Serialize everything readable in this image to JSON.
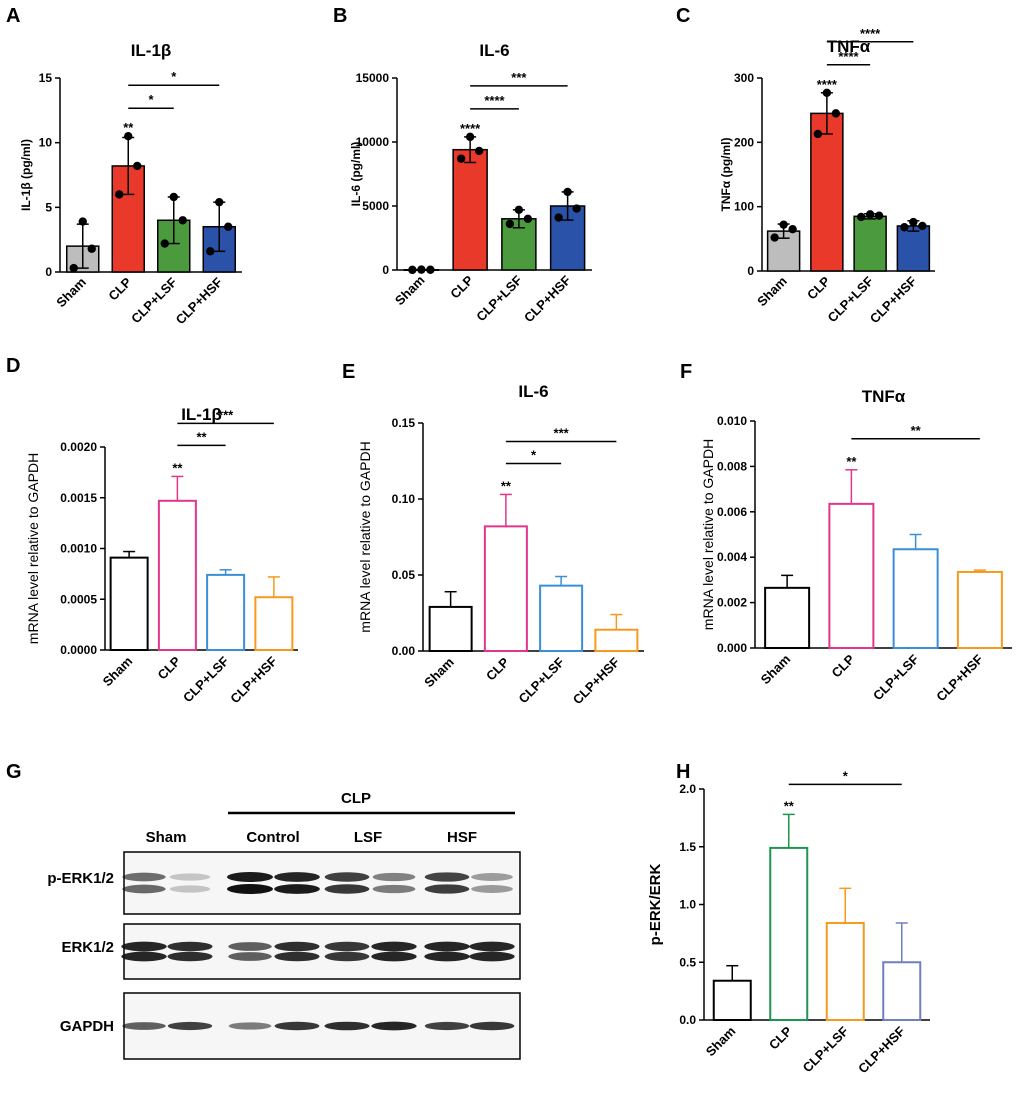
{
  "figure": {
    "panel_labels": [
      "A",
      "B",
      "C",
      "D",
      "E",
      "F",
      "G",
      "H"
    ]
  },
  "chart_data": [
    {
      "panel": "A",
      "type": "bar",
      "title": "IL-1β",
      "ylabel": "IL-1β (pg/ml)",
      "categories": [
        "Sham",
        "CLP",
        "CLP+LSF",
        "CLP+HSF"
      ],
      "values": [
        2.0,
        8.2,
        4.0,
        3.5
      ],
      "errors": [
        1.7,
        2.2,
        1.8,
        1.9
      ],
      "points": [
        [
          3.9,
          1.8,
          0.3
        ],
        [
          10.5,
          8.2,
          6.0
        ],
        [
          5.8,
          4.0,
          2.2
        ],
        [
          5.4,
          3.5,
          1.6
        ]
      ],
      "colors": [
        "#bdbdbd",
        "#e8392a",
        "#4b9b3e",
        "#2a52a8"
      ],
      "filled": true,
      "ylim": [
        0,
        15
      ],
      "yticks": [
        "0",
        "5",
        "10",
        "15"
      ],
      "significance": [
        {
          "label": "**",
          "on": 1
        },
        {
          "label": "*",
          "from": 1,
          "to": 2
        },
        {
          "label": "*",
          "from": 1,
          "to": 3
        }
      ]
    },
    {
      "panel": "B",
      "type": "bar",
      "title": "IL-6",
      "ylabel": "IL-6 (pg/ml)",
      "categories": [
        "Sham",
        "CLP",
        "CLP+LSF",
        "CLP+HSF"
      ],
      "values": [
        20,
        9400,
        4000,
        5000
      ],
      "errors": [
        10,
        1000,
        700,
        1100
      ],
      "points": [
        [
          30,
          20,
          10
        ],
        [
          10400,
          9300,
          8700
        ],
        [
          4700,
          4000,
          3600
        ],
        [
          6100,
          4800,
          4100
        ]
      ],
      "colors": [
        "#bdbdbd",
        "#e8392a",
        "#4b9b3e",
        "#2a52a8"
      ],
      "filled": true,
      "ylim": [
        0,
        15000
      ],
      "yticks": [
        "0",
        "5000",
        "10000",
        "15000"
      ],
      "significance": [
        {
          "label": "****",
          "on": 1
        },
        {
          "label": "****",
          "from": 1,
          "to": 2
        },
        {
          "label": "***",
          "from": 1,
          "to": 3
        }
      ]
    },
    {
      "panel": "C",
      "type": "bar",
      "title": "TNFα",
      "ylabel": "TNFα (pg/ml)",
      "categories": [
        "Sham",
        "CLP",
        "CLP+LSF",
        "CLP+HSF"
      ],
      "values": [
        62,
        245,
        85,
        70
      ],
      "errors": [
        11,
        32,
        4,
        8
      ],
      "points": [
        [
          72,
          65,
          52
        ],
        [
          277,
          245,
          213
        ],
        [
          88,
          86,
          84
        ],
        [
          76,
          70,
          68
        ]
      ],
      "colors": [
        "#bdbdbd",
        "#e8392a",
        "#4b9b3e",
        "#2a52a8"
      ],
      "filled": true,
      "ylim": [
        0,
        300
      ],
      "yticks": [
        "0",
        "100",
        "200",
        "300"
      ],
      "significance": [
        {
          "label": "****",
          "on": 1
        },
        {
          "label": "****",
          "from": 1,
          "to": 2
        },
        {
          "label": "****",
          "from": 1,
          "to": 3
        }
      ]
    },
    {
      "panel": "D",
      "type": "bar",
      "title": "IL-1β",
      "ylabel": "mRNA level relative to GAPDH",
      "categories": [
        "Sham",
        "CLP",
        "CLP+LSF",
        "CLP+HSF"
      ],
      "values": [
        0.00091,
        0.00147,
        0.00074,
        0.00052
      ],
      "errors": [
        6e-05,
        0.00024,
        5e-05,
        0.0002
      ],
      "colors": [
        "#000000",
        "#e0368c",
        "#3a8fd8",
        "#f59a1f"
      ],
      "filled": false,
      "ylim": [
        0,
        0.002
      ],
      "yticks": [
        "0.0000",
        "0.0005",
        "0.0010",
        "0.0015",
        "0.0020"
      ],
      "significance": [
        {
          "label": "**",
          "on": 1
        },
        {
          "label": "**",
          "from": 1,
          "to": 2
        },
        {
          "label": "***",
          "from": 1,
          "to": 3
        }
      ]
    },
    {
      "panel": "E",
      "type": "bar",
      "title": "IL-6",
      "ylabel": "mRNA level relative to GAPDH",
      "categories": [
        "Sham",
        "CLP",
        "CLP+LSF",
        "CLP+HSF"
      ],
      "values": [
        0.029,
        0.082,
        0.043,
        0.014
      ],
      "errors": [
        0.01,
        0.021,
        0.006,
        0.01
      ],
      "colors": [
        "#000000",
        "#e0368c",
        "#3a8fd8",
        "#f59a1f"
      ],
      "filled": false,
      "ylim": [
        0,
        0.15
      ],
      "yticks": [
        "0.00",
        "0.05",
        "0.10",
        "0.15"
      ],
      "significance": [
        {
          "label": "**",
          "on": 1
        },
        {
          "label": "*",
          "from": 1,
          "to": 2
        },
        {
          "label": "***",
          "from": 1,
          "to": 3
        }
      ]
    },
    {
      "panel": "F",
      "type": "bar",
      "title": "TNFα",
      "ylabel": "mRNA level relative to GAPDH",
      "categories": [
        "Sham",
        "CLP",
        "CLP+LSF",
        "CLP+HSF"
      ],
      "values": [
        0.00265,
        0.00635,
        0.00435,
        0.00335
      ],
      "errors": [
        0.00055,
        0.0015,
        0.00065,
        8e-05
      ],
      "colors": [
        "#000000",
        "#e0368c",
        "#3a8fd8",
        "#f59a1f"
      ],
      "filled": false,
      "ylim": [
        0,
        0.01
      ],
      "yticks": [
        "0.000",
        "0.002",
        "0.004",
        "0.006",
        "0.008",
        "0.010"
      ],
      "significance": [
        {
          "label": "**",
          "on": 1
        },
        {
          "label": "**",
          "from": 1,
          "to": 3
        }
      ]
    },
    {
      "panel": "H",
      "type": "bar",
      "title": "",
      "ylabel": "p-ERK/ERK",
      "categories": [
        "Sham",
        "CLP",
        "CLP+LSF",
        "CLP+HSF"
      ],
      "values": [
        0.34,
        1.49,
        0.84,
        0.5
      ],
      "errors": [
        0.13,
        0.29,
        0.3,
        0.34
      ],
      "colors": [
        "#000000",
        "#1e9450",
        "#f59a1f",
        "#6f7fbf"
      ],
      "filled": false,
      "ylim": [
        0,
        2.0
      ],
      "yticks": [
        "0.0",
        "0.5",
        "1.0",
        "1.5",
        "2.0"
      ],
      "significance": [
        {
          "label": "**",
          "on": 1
        },
        {
          "label": "*",
          "from": 1,
          "to": 3
        }
      ]
    }
  ],
  "western_blot": {
    "panel": "G",
    "group_label": "CLP",
    "lane_groups": [
      "Sham",
      "Control",
      "LSF",
      "HSF"
    ],
    "proteins": [
      "p-ERK1/2",
      "ERK1/2",
      "GAPDH"
    ],
    "band_intensity": [
      [
        0.55,
        0.08,
        1.0,
        0.95,
        0.8,
        0.45,
        0.78,
        0.3
      ],
      [
        0.9,
        0.85,
        0.6,
        0.85,
        0.8,
        0.9,
        0.9,
        0.9
      ],
      [
        0.6,
        0.75,
        0.45,
        0.8,
        0.85,
        0.9,
        0.75,
        0.8
      ]
    ]
  }
}
